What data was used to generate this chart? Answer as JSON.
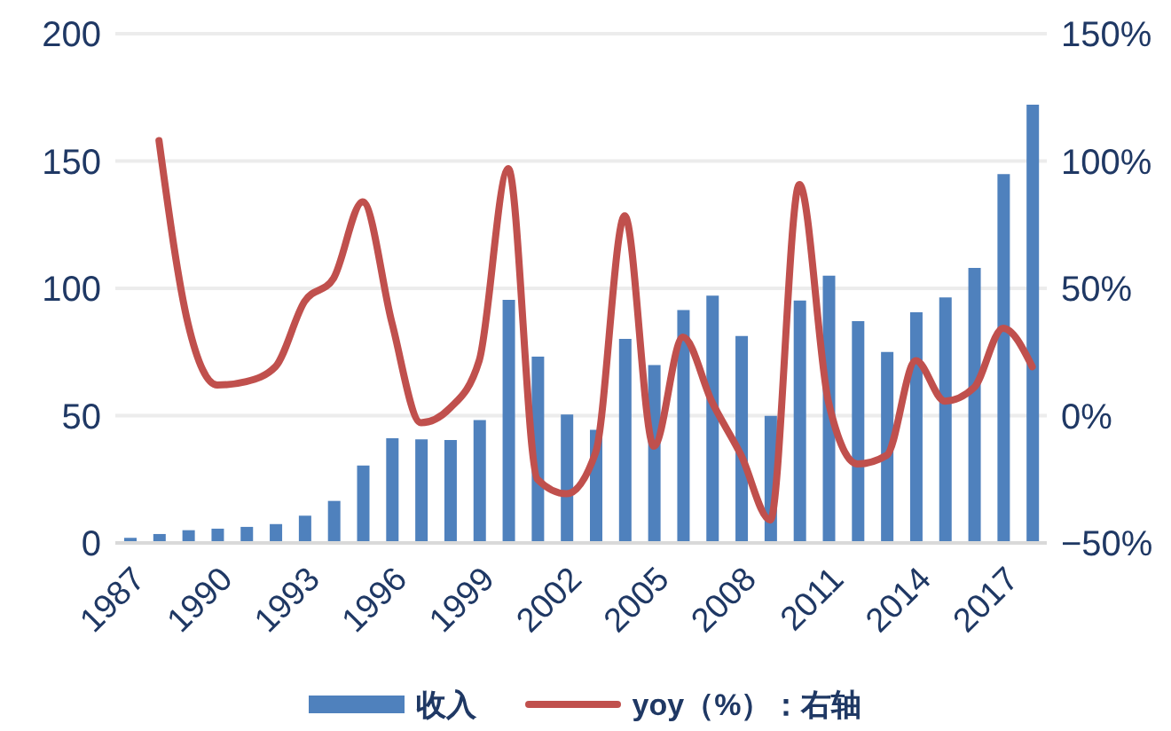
{
  "chart_data": {
    "type": "bar",
    "categories": [
      "1987",
      null,
      null,
      "1990",
      null,
      null,
      "1993",
      null,
      null,
      "1996",
      null,
      null,
      "1999",
      null,
      null,
      "2002",
      null,
      null,
      "2005",
      null,
      null,
      "2008",
      null,
      null,
      "2011",
      null,
      null,
      "2014",
      null,
      null,
      "2017",
      null
    ],
    "series": [
      {
        "name": "收入",
        "color": "#4f81bd",
        "values": [
          2,
          3.5,
          5,
          5.6,
          6.3,
          7.4,
          10.7,
          16.5,
          30.4,
          41.1,
          40.7,
          40.4,
          48.3,
          95.5,
          73.2,
          50.4,
          44.4,
          80.1,
          69.9,
          91.5,
          97.1,
          81.3,
          49.9,
          95.2,
          105,
          87.1,
          75,
          90.6,
          96.4,
          108,
          144.9,
          172.1
        ]
      },
      {
        "name": "yoy（%）：右轴",
        "type": "line",
        "axis": "y2",
        "color": "#c0504d",
        "values": [
          null,
          108,
          36,
          12,
          13.4,
          19.2,
          44.8,
          54,
          84,
          36.6,
          -2.8,
          3,
          21.6,
          97,
          -25,
          -30.7,
          -14.5,
          78.5,
          -12,
          30.8,
          5.3,
          -15.6,
          -41,
          90.8,
          5.3,
          -19,
          -15.6,
          21.6,
          5.7,
          11,
          34.3,
          19.2
        ]
      }
    ],
    "ylim": [
      0,
      200
    ],
    "yticks": [
      0,
      50,
      100,
      150,
      200
    ],
    "y2lim": [
      -50,
      150
    ],
    "y2ticks": [
      {
        "value": -50,
        "label": "−50%"
      },
      {
        "value": 0,
        "label": "0%"
      },
      {
        "value": 50,
        "label": "50%"
      },
      {
        "value": 100,
        "label": "100%"
      },
      {
        "value": 150,
        "label": "150%"
      }
    ],
    "grid": "y",
    "legend": "bottom"
  }
}
